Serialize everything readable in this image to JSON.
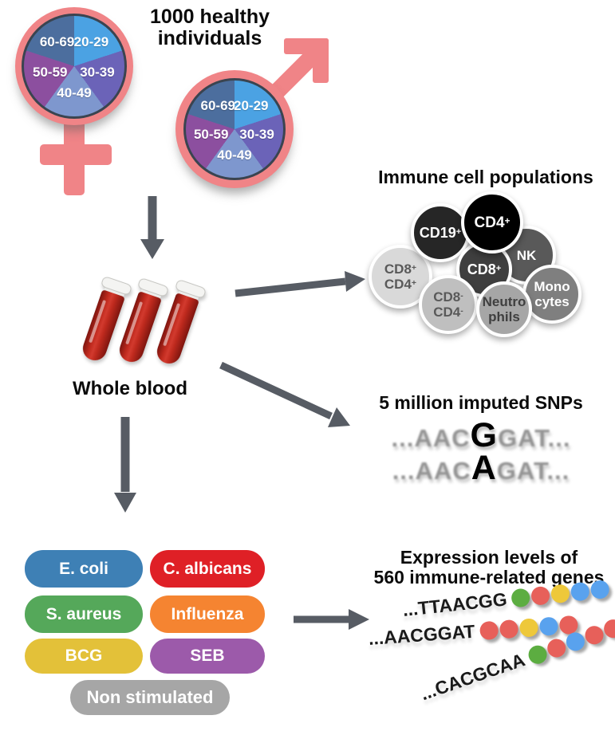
{
  "palette": {
    "symbol_pink": "#F08487",
    "arrow_gray": "#575C64",
    "blood_red": "#BF2A1E",
    "pie_border": "#3A4450"
  },
  "header": {
    "title_line1": "1000 healthy",
    "title_line2": "individuals"
  },
  "age_pie": {
    "description": "Age distribution pie chart shown inside both the female and male symbols",
    "slices": [
      {
        "label": "20-29",
        "color": "#4BA2E3",
        "share_pct": 20
      },
      {
        "label": "30-39",
        "color": "#6B63B8",
        "share_pct": 20
      },
      {
        "label": "40-49",
        "color": "#7E97CE",
        "share_pct": 20
      },
      {
        "label": "50-59",
        "color": "#8C4F9F",
        "share_pct": 20
      },
      {
        "label": "60-69",
        "color": "#4C6E9E",
        "share_pct": 20
      }
    ]
  },
  "whole_blood": {
    "label": "Whole blood"
  },
  "immune": {
    "title": "Immune cell populations",
    "cells": [
      {
        "id": "cd8pos-cd4pos",
        "lines": [
          {
            "base": "CD8",
            "sup": "+"
          },
          {
            "base": "CD4",
            "sup": "+"
          }
        ],
        "bg": "#D9D9D9",
        "fg": "#595959"
      },
      {
        "id": "nk",
        "lines": [
          {
            "base": "NK",
            "sup": ""
          }
        ],
        "bg": "#595959",
        "fg": "#FFFFFF"
      },
      {
        "id": "cd19",
        "lines": [
          {
            "base": "CD19",
            "sup": "+"
          }
        ],
        "bg": "#262626",
        "fg": "#FFFFFF"
      },
      {
        "id": "monocytes",
        "lines": [
          {
            "base": "Mono",
            "sup": ""
          },
          {
            "base": "cytes",
            "sup": ""
          }
        ],
        "bg": "#7F7F7F",
        "fg": "#FFFFFF"
      },
      {
        "id": "cd8",
        "lines": [
          {
            "base": "CD8",
            "sup": "+"
          }
        ],
        "bg": "#3F3F3F",
        "fg": "#FFFFFF"
      },
      {
        "id": "cd4",
        "lines": [
          {
            "base": "CD4",
            "sup": "+"
          }
        ],
        "bg": "#000000",
        "fg": "#FFFFFF"
      },
      {
        "id": "cd8neg-cd4neg",
        "lines": [
          {
            "base": "CD8",
            "sup": "-"
          },
          {
            "base": "CD4",
            "sup": "-"
          }
        ],
        "bg": "#BFBFBF",
        "fg": "#595959"
      },
      {
        "id": "neutrophils",
        "lines": [
          {
            "base": "Neutro",
            "sup": ""
          },
          {
            "base": "phils",
            "sup": ""
          }
        ],
        "bg": "#A6A6A6",
        "fg": "#3F3F3F"
      }
    ]
  },
  "snps": {
    "title": "5 million imputed SNPs",
    "rows": [
      {
        "prefix": "...AAC",
        "variant": "G",
        "suffix": "GAT..."
      },
      {
        "prefix": "...AAC",
        "variant": "A",
        "suffix": "GAT..."
      }
    ]
  },
  "stimuli": {
    "items": [
      {
        "label": "E. coli",
        "color": "#3E80B5"
      },
      {
        "label": "C. albicans",
        "color": "#DF2026"
      },
      {
        "label": "S. aureus",
        "color": "#55A85A"
      },
      {
        "label": "Influenza",
        "color": "#F58431"
      },
      {
        "label": "BCG",
        "color": "#E3C139"
      },
      {
        "label": "SEB",
        "color": "#9C5AAA"
      },
      {
        "label": "Non stimulated",
        "color": "#A6A6A6"
      }
    ]
  },
  "expression": {
    "title_line1": "Expression levels of",
    "title_line2": "560 immune-related genes",
    "dot_colors": {
      "green": "#5CAD41",
      "red": "#E7605A",
      "yellow": "#EEC83A",
      "blue": "#59A2EE"
    },
    "genes": [
      {
        "sequence": "...TTAACGG",
        "dots": [
          "green",
          "red",
          "yellow",
          "blue",
          "blue"
        ]
      },
      {
        "sequence": "...AACGGAT",
        "dots": [
          "red",
          "red",
          "yellow",
          "blue",
          "red"
        ]
      },
      {
        "sequence": "...CACGCAA",
        "dots": [
          "green",
          "red",
          "blue",
          "red",
          "red"
        ]
      }
    ]
  }
}
